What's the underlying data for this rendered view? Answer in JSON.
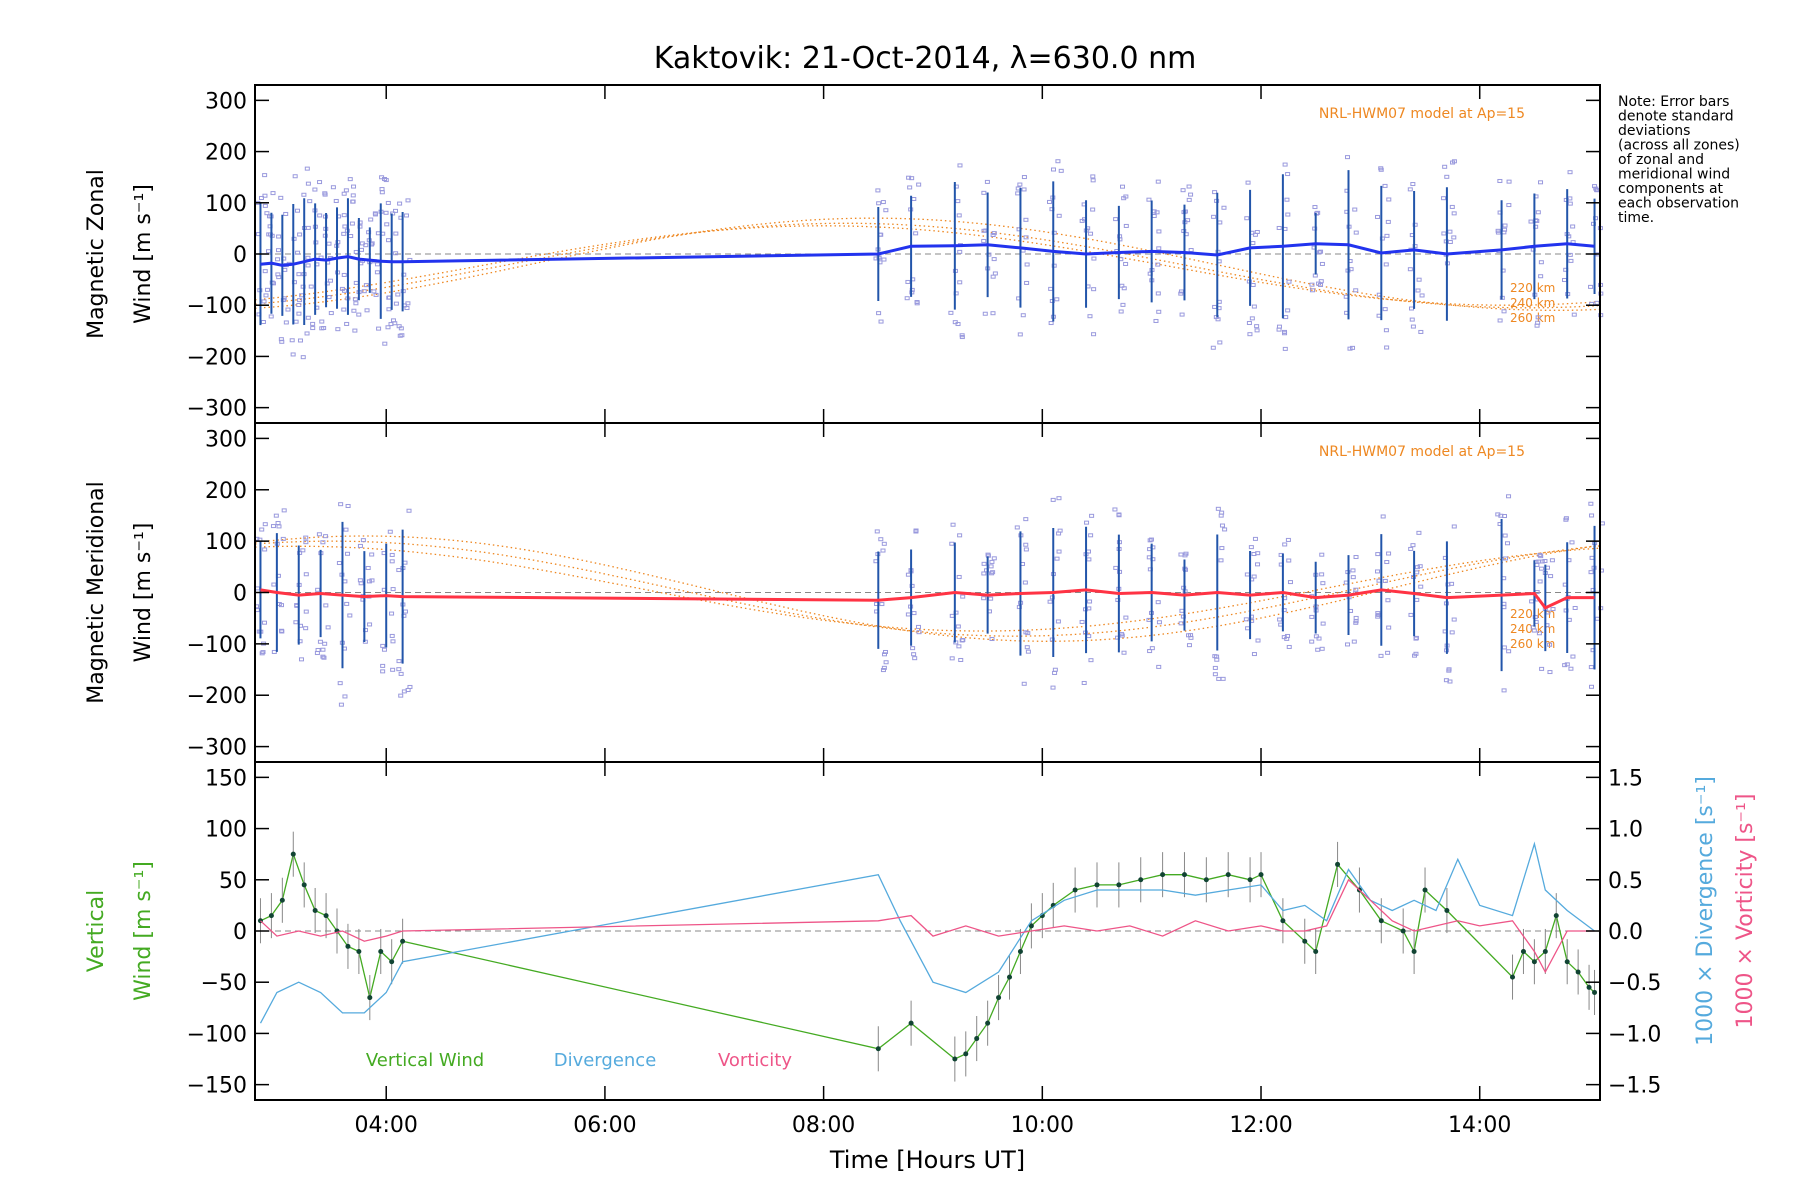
{
  "title": "Kaktovik: 21-Oct-2014, λ=630.0 nm",
  "note_lines": [
    "Note: Error bars",
    "denote standard",
    "deviations",
    "(across all zones)",
    "of zonal and",
    "meridional wind",
    "components at",
    "each observation",
    "time."
  ],
  "colors": {
    "zonal": "#2233ee",
    "meridional": "#ff3344",
    "vertical": "#44aa22",
    "divergence": "#55aadd",
    "vorticity": "#ee5588",
    "model": "#ee8822",
    "scatter": "#9999dd",
    "errorbar": "#2255aa"
  },
  "chart_data": [
    {
      "type": "line",
      "panel": "zonal",
      "ylabel_line1": "Magnetic Zonal",
      "ylabel_line2": "Wind [m s⁻¹]",
      "ylim": [
        -330,
        330
      ],
      "yticks": [
        300,
        200,
        100,
        0,
        -100,
        -200,
        -300
      ],
      "xlim": [
        2.8,
        15.1
      ],
      "model_label": "NRL-HWM07 model at Ap=15",
      "model_altitudes": [
        "220 km",
        "240 km",
        "260 km"
      ],
      "series": [
        {
          "name": "",
          "x": [
            2.85,
            2.95,
            3.05,
            3.15,
            3.25,
            3.35,
            3.45,
            3.55,
            3.65,
            3.75,
            3.85,
            3.95,
            4.05,
            4.15,
            8.5,
            8.8,
            9.2,
            9.5,
            9.8,
            10.1,
            10.4,
            10.7,
            11.0,
            11.3,
            11.6,
            11.9,
            12.2,
            12.5,
            12.8,
            13.1,
            13.4,
            13.7,
            14.2,
            14.5,
            14.8,
            15.05
          ],
          "values": [
            -20,
            -18,
            -22,
            -20,
            -15,
            -10,
            -12,
            -8,
            -5,
            -10,
            -12,
            -14,
            -15,
            -15,
            0,
            15,
            16,
            18,
            12,
            5,
            0,
            3,
            5,
            3,
            -2,
            12,
            15,
            20,
            18,
            2,
            8,
            0,
            8,
            15,
            20,
            15
          ]
        }
      ]
    },
    {
      "type": "line",
      "panel": "meridional",
      "ylabel_line1": "Magnetic Meridional",
      "ylabel_line2": "Wind [m s⁻¹]",
      "ylim": [
        -330,
        330
      ],
      "yticks": [
        300,
        200,
        100,
        0,
        -100,
        -200,
        -300
      ],
      "xlim": [
        2.8,
        15.1
      ],
      "model_label": "NRL-HWM07 model at Ap=15",
      "model_altitudes": [
        "220 km",
        "240 km",
        "260 km"
      ],
      "series": [
        {
          "name": "",
          "x": [
            2.85,
            3.0,
            3.2,
            3.4,
            3.6,
            3.8,
            4.0,
            4.15,
            8.5,
            8.8,
            9.2,
            9.5,
            9.8,
            10.1,
            10.4,
            10.7,
            11.0,
            11.3,
            11.6,
            11.9,
            12.2,
            12.5,
            12.8,
            13.1,
            13.4,
            13.7,
            14.2,
            14.5,
            14.6,
            14.8,
            15.05
          ],
          "values": [
            5,
            0,
            -5,
            -2,
            -5,
            -8,
            -6,
            -8,
            -15,
            -10,
            0,
            -5,
            -2,
            0,
            5,
            -2,
            0,
            -5,
            0,
            -5,
            0,
            -10,
            -5,
            5,
            -2,
            -10,
            -5,
            -2,
            -30,
            -10,
            -10
          ]
        }
      ]
    },
    {
      "type": "line",
      "panel": "vertical",
      "ylabel_line1": "Vertical",
      "ylabel_line2": "Wind [m s⁻¹]",
      "ylim": [
        -165,
        165
      ],
      "yticks": [
        150,
        100,
        50,
        0,
        -50,
        -100,
        -150
      ],
      "y2label_divergence": "1000 × Divergence [s⁻¹]",
      "y2label_vorticity": "1000 × Vorticity [s⁻¹]",
      "y2lim": [
        -1.65,
        1.65
      ],
      "y2ticks": [
        "1.5",
        "1.0",
        "0.5",
        "0.0",
        "-0.5",
        "-1.0",
        "-1.5"
      ],
      "y2tick_values": [
        1.5,
        1.0,
        0.5,
        0.0,
        -0.5,
        -1.0,
        -1.5
      ],
      "xlim": [
        2.8,
        15.1
      ],
      "xticks": [
        "04:00",
        "06:00",
        "08:00",
        "10:00",
        "12:00",
        "14:00"
      ],
      "xtick_values": [
        4,
        6,
        8,
        10,
        12,
        14
      ],
      "xlabel": "Time [Hours UT]",
      "legend": [
        "Vertical Wind",
        "Divergence",
        "Vorticity"
      ],
      "series": [
        {
          "name": "Vertical Wind",
          "x": [
            2.85,
            2.95,
            3.05,
            3.15,
            3.25,
            3.35,
            3.45,
            3.55,
            3.65,
            3.75,
            3.85,
            3.95,
            4.05,
            4.15,
            8.5,
            8.8,
            9.2,
            9.3,
            9.4,
            9.5,
            9.6,
            9.7,
            9.8,
            9.9,
            10.0,
            10.1,
            10.3,
            10.5,
            10.7,
            10.9,
            11.1,
            11.3,
            11.5,
            11.7,
            11.9,
            12.0,
            12.2,
            12.4,
            12.5,
            12.7,
            12.9,
            13.1,
            13.3,
            13.4,
            13.5,
            13.7,
            14.3,
            14.4,
            14.5,
            14.6,
            14.7,
            14.8,
            14.9,
            15.0,
            15.05
          ],
          "values": [
            10,
            15,
            30,
            75,
            45,
            20,
            15,
            0,
            -15,
            -20,
            -65,
            -20,
            -30,
            -10,
            -115,
            -90,
            -125,
            -120,
            -105,
            -90,
            -65,
            -45,
            -20,
            5,
            15,
            25,
            40,
            45,
            45,
            50,
            55,
            55,
            50,
            55,
            50,
            55,
            10,
            -10,
            -20,
            65,
            40,
            10,
            0,
            -20,
            40,
            20,
            -45,
            -20,
            -30,
            -20,
            15,
            -30,
            -40,
            -55,
            -60
          ]
        },
        {
          "name": "Divergence",
          "x": [
            2.85,
            3.0,
            3.2,
            3.4,
            3.6,
            3.8,
            4.0,
            4.15,
            8.5,
            8.7,
            9.0,
            9.3,
            9.6,
            9.9,
            10.2,
            10.5,
            10.8,
            11.1,
            11.4,
            11.7,
            12.0,
            12.2,
            12.4,
            12.6,
            12.8,
            13.0,
            13.2,
            13.4,
            13.6,
            13.8,
            14.0,
            14.3,
            14.5,
            14.6,
            14.8,
            15.05
          ],
          "values": [
            -0.9,
            -0.6,
            -0.5,
            -0.6,
            -0.8,
            -0.8,
            -0.6,
            -0.3,
            0.55,
            0.1,
            -0.5,
            -0.6,
            -0.4,
            0.1,
            0.3,
            0.4,
            0.4,
            0.4,
            0.35,
            0.4,
            0.45,
            0.2,
            0.25,
            0.1,
            0.6,
            0.3,
            0.2,
            0.3,
            0.2,
            0.7,
            0.25,
            0.15,
            0.85,
            0.4,
            0.2,
            0.0
          ]
        },
        {
          "name": "Vorticity",
          "x": [
            2.85,
            3.0,
            3.2,
            3.4,
            3.6,
            3.8,
            4.0,
            4.15,
            8.5,
            8.8,
            9.0,
            9.3,
            9.6,
            9.9,
            10.2,
            10.5,
            10.8,
            11.1,
            11.4,
            11.7,
            12.0,
            12.2,
            12.4,
            12.6,
            12.8,
            13.0,
            13.2,
            13.4,
            13.6,
            13.8,
            14.0,
            14.3,
            14.5,
            14.6,
            14.8,
            15.05
          ],
          "values": [
            0.1,
            -0.05,
            0.0,
            -0.05,
            0.0,
            -0.1,
            -0.05,
            0.0,
            0.1,
            0.15,
            -0.05,
            0.05,
            -0.05,
            0.0,
            0.05,
            0.0,
            0.05,
            -0.05,
            0.1,
            0.0,
            0.05,
            0.0,
            0.0,
            0.05,
            0.5,
            0.3,
            0.1,
            0.0,
            0.05,
            0.1,
            0.05,
            0.1,
            -0.2,
            -0.4,
            0.0,
            0.0
          ]
        }
      ]
    }
  ]
}
